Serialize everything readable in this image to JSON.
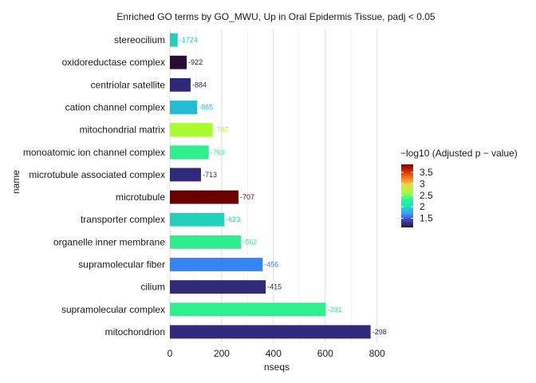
{
  "chart_data": {
    "type": "bar",
    "orientation": "horizontal",
    "title": "Enriched GO terms by GO_MWU, Up in Oral Epidermis Tissue, padj < 0.05",
    "xlabel": "nseqs",
    "ylabel": "name",
    "xlim": [
      0,
      850
    ],
    "x_ticks": [
      0,
      200,
      400,
      600,
      800
    ],
    "grid": "vertical major and minor",
    "categories": [
      "stereocilium",
      "oxidoreductase complex",
      "centriolar satellite",
      "cation channel complex",
      "mitochondrial matrix",
      "monoatomic ion channel complex",
      "microtubule associated complex",
      "microtubule",
      "transporter complex",
      "organelle inner membrane",
      "supramolecular fiber",
      "cilium",
      "supramolecular complex",
      "mitochondrion"
    ],
    "values": [
      30,
      65,
      80,
      105,
      165,
      150,
      120,
      265,
      210,
      275,
      358,
      370,
      602,
      775
    ],
    "labels": [
      "-1724",
      "-922",
      "-884",
      "-865",
      "-787",
      "-769",
      "-713",
      "-707",
      "-623",
      "-562",
      "-456",
      "-415",
      "-391",
      "-298"
    ],
    "neg_log10_padj": [
      1.9,
      1.15,
      1.45,
      2.0,
      2.7,
      2.3,
      1.45,
      3.75,
      2.05,
      2.3,
      1.75,
      1.45,
      2.3,
      1.45
    ],
    "colors": [
      "#26ccbc",
      "#2a0d36",
      "#2f277a",
      "#22bcd4",
      "#a7fb2f",
      "#2ef08e",
      "#30297c",
      "#6b0000",
      "#22d1bb",
      "#2ded8f",
      "#3485f3",
      "#30297c",
      "#2ef08e",
      "#30297c"
    ],
    "legend": {
      "title": "−log10 (Adjusted p − value)",
      "ticks": [
        "3.5",
        "3",
        "2.5",
        "2",
        "1.5"
      ],
      "tick_values": [
        3.5,
        3.0,
        2.5,
        2.0,
        1.5
      ],
      "range": [
        1.1,
        3.85
      ],
      "gradient": [
        "#7a0403",
        "#d52b05",
        "#fb8022",
        "#e0e03a",
        "#a4fc3c",
        "#2ef597",
        "#1ae4b6",
        "#3e9bfe",
        "#4145ab",
        "#30123b"
      ],
      "position": "right"
    }
  }
}
